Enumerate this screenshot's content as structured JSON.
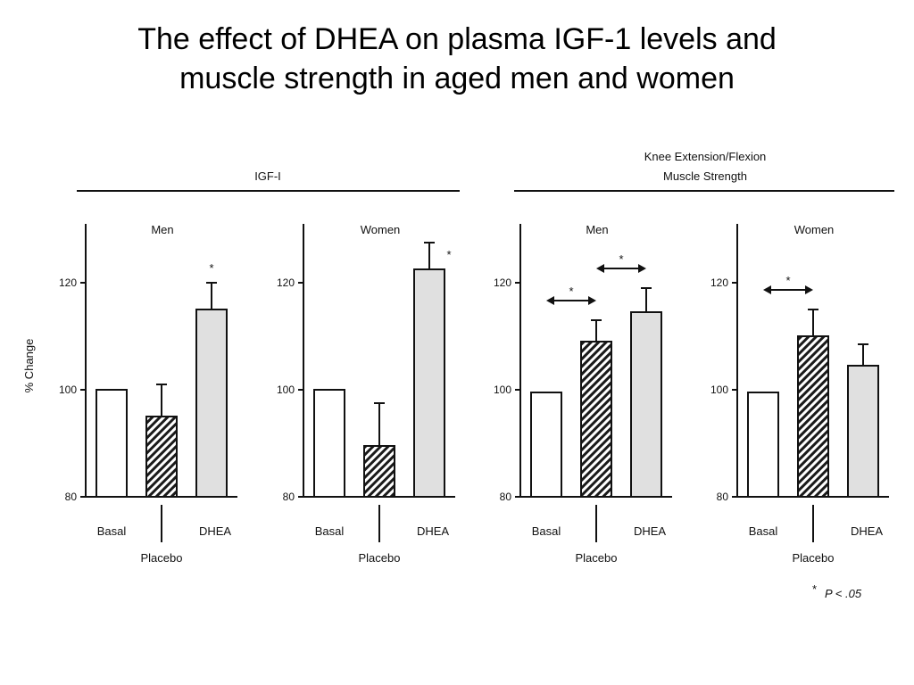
{
  "title_lines": [
    "The effect of DHEA on plasma IGF-1 levels and",
    "muscle strength in aged men and women"
  ],
  "groups": [
    {
      "label": "IGF-I"
    },
    {
      "label_lines": [
        "Knee Extension/Flexion",
        "Muscle Strength"
      ]
    }
  ],
  "ylabel": "% Change",
  "sig_note": {
    "star": "*",
    "text": "P < .05"
  },
  "chart_data": [
    {
      "type": "bar",
      "group": "IGF-I",
      "title": "Men",
      "categories": [
        "Basal",
        "Placebo",
        "DHEA"
      ],
      "values": [
        100,
        95,
        115
      ],
      "errors": [
        0,
        6,
        5
      ],
      "ylim": [
        80,
        130
      ],
      "yticks": [
        80,
        100,
        120
      ],
      "ylabel": "% Change",
      "significance": [
        {
          "type": "star",
          "bar": 2,
          "text": "*"
        }
      ]
    },
    {
      "type": "bar",
      "group": "IGF-I",
      "title": "Women",
      "categories": [
        "Basal",
        "Placebo",
        "DHEA"
      ],
      "values": [
        100,
        89.5,
        122.5
      ],
      "errors": [
        0,
        8,
        5
      ],
      "ylim": [
        80,
        130
      ],
      "yticks": [
        80,
        100,
        120
      ],
      "significance": [
        {
          "type": "star",
          "bar": 2,
          "text": "*"
        }
      ]
    },
    {
      "type": "bar",
      "group": "Knee Extension/Flexion Muscle Strength",
      "title": "Men",
      "categories": [
        "Basal",
        "Placebo",
        "DHEA"
      ],
      "values": [
        99.5,
        109,
        114.5
      ],
      "errors": [
        0,
        4,
        4.5
      ],
      "ylim": [
        80,
        130
      ],
      "yticks": [
        80,
        100,
        120
      ],
      "significance": [
        {
          "type": "arrow",
          "from": 0,
          "to": 1,
          "text": "*"
        },
        {
          "type": "arrow",
          "from": 1,
          "to": 2,
          "text": "*"
        }
      ]
    },
    {
      "type": "bar",
      "group": "Knee Extension/Flexion Muscle Strength",
      "title": "Women",
      "categories": [
        "Basal",
        "Placebo",
        "DHEA"
      ],
      "values": [
        99.5,
        110,
        104.5
      ],
      "errors": [
        0,
        5,
        4
      ],
      "ylim": [
        80,
        130
      ],
      "yticks": [
        80,
        100,
        120
      ],
      "significance": [
        {
          "type": "arrow",
          "from": 0,
          "to": 1,
          "text": "*"
        }
      ]
    }
  ]
}
